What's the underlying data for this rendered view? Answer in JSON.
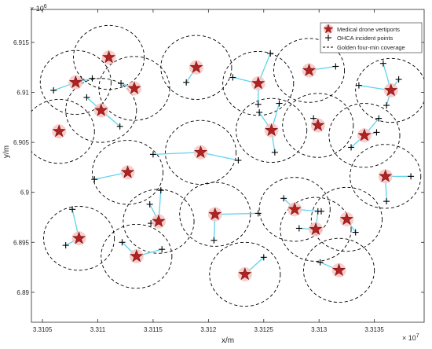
{
  "chart_data": {
    "type": "scatter",
    "xlabel": "x/m",
    "ylabel": "y/m",
    "x_exponent_label": "× 10",
    "x_exponent_power": "7",
    "y_exponent_label": "× 10",
    "y_exponent_power": "6",
    "xlim": [
      33104000,
      33139500
    ],
    "ylim": [
      6887000,
      6918300
    ],
    "xticks": [
      33105000,
      33110000,
      33115000,
      33120000,
      33125000,
      33130000,
      33135000
    ],
    "xtick_labels": [
      "3.3105",
      "3.311",
      "3.3115",
      "3.312",
      "3.3125",
      "3.313",
      "3.3135"
    ],
    "yticks": [
      6890000,
      6895000,
      6900000,
      6905000,
      6910000,
      6915000
    ],
    "ytick_labels": [
      "6.89",
      "6.895",
      "6.9",
      "6.905",
      "6.91",
      "6.915"
    ],
    "coverage_radius": 3200,
    "grid": false,
    "legend_position": "top-right",
    "legend": [
      "Medical drone vertiports",
      "OHCA incident points",
      "Golden four-min coverage"
    ],
    "colors": {
      "star_fill": "#b22222",
      "star_stroke": "#7a1010",
      "star_halo": "#f4c7c3",
      "link": "#5fd3ee",
      "incident": "#000000",
      "circle": "#000000"
    },
    "vertiports": [
      {
        "x": 33111000,
        "y": 6913500,
        "incidents": []
      },
      {
        "x": 33108000,
        "y": 6911000,
        "incidents": [
          [
            33106000,
            6910200
          ],
          [
            33108500,
            6911300
          ],
          [
            33109500,
            6911400
          ]
        ]
      },
      {
        "x": 33113300,
        "y": 6910400,
        "incidents": [
          [
            33112100,
            6910900
          ]
        ]
      },
      {
        "x": 33110300,
        "y": 6908200,
        "incidents": [
          [
            33109000,
            6909500
          ],
          [
            33112000,
            6906600
          ]
        ]
      },
      {
        "x": 33106500,
        "y": 6906100,
        "incidents": []
      },
      {
        "x": 33118900,
        "y": 6912500,
        "incidents": [
          [
            33118000,
            6911000
          ]
        ]
      },
      {
        "x": 33124500,
        "y": 6910900,
        "incidents": [
          [
            33122200,
            6911500
          ],
          [
            33125600,
            6913900
          ],
          [
            33124500,
            6908800
          ]
        ]
      },
      {
        "x": 33129100,
        "y": 6912200,
        "incidents": [
          [
            33131500,
            6912600
          ]
        ]
      },
      {
        "x": 33136500,
        "y": 6910200,
        "incidents": [
          [
            33133600,
            6910700
          ],
          [
            33135800,
            6912900
          ],
          [
            33137200,
            6911300
          ],
          [
            33136100,
            6908700
          ]
        ]
      },
      {
        "x": 33125700,
        "y": 6906200,
        "incidents": [
          [
            33124600,
            6908000
          ],
          [
            33126400,
            6908900
          ],
          [
            33126000,
            6904000
          ]
        ]
      },
      {
        "x": 33129900,
        "y": 6906700,
        "incidents": [
          [
            33129500,
            6907400
          ]
        ]
      },
      {
        "x": 33134100,
        "y": 6905700,
        "incidents": [
          [
            33132900,
            6904500
          ],
          [
            33135200,
            6906000
          ],
          [
            33135400,
            6907400
          ]
        ]
      },
      {
        "x": 33119300,
        "y": 6904000,
        "incidents": [
          [
            33115000,
            6903800
          ],
          [
            33122700,
            6903200
          ]
        ]
      },
      {
        "x": 33112700,
        "y": 6902000,
        "incidents": [
          [
            33109700,
            6901300
          ]
        ]
      },
      {
        "x": 33136000,
        "y": 6901600,
        "incidents": [
          [
            33138300,
            6901600
          ],
          [
            33136100,
            6899100
          ]
        ]
      },
      {
        "x": 33115500,
        "y": 6897100,
        "incidents": [
          [
            33115700,
            6900200
          ],
          [
            33114700,
            6898800
          ],
          [
            33114800,
            6896900
          ]
        ]
      },
      {
        "x": 33120600,
        "y": 6897800,
        "incidents": [
          [
            33124500,
            6897900
          ],
          [
            33120500,
            6895200
          ]
        ]
      },
      {
        "x": 33127800,
        "y": 6898300,
        "incidents": [
          [
            33126800,
            6899400
          ],
          [
            33130200,
            6898100
          ]
        ]
      },
      {
        "x": 33129700,
        "y": 6896300,
        "incidents": [
          [
            33128200,
            6896400
          ],
          [
            33129900,
            6898100
          ]
        ]
      },
      {
        "x": 33132500,
        "y": 6897300,
        "incidents": [
          [
            33133300,
            6896000
          ]
        ]
      },
      {
        "x": 33108300,
        "y": 6895400,
        "incidents": [
          [
            33107700,
            6898300
          ],
          [
            33107100,
            6894700
          ]
        ]
      },
      {
        "x": 33113500,
        "y": 6893600,
        "incidents": [
          [
            33112200,
            6895000
          ],
          [
            33115800,
            6894300
          ]
        ]
      },
      {
        "x": 33123300,
        "y": 6891800,
        "incidents": [
          [
            33125000,
            6893500
          ]
        ]
      },
      {
        "x": 33131800,
        "y": 6892200,
        "incidents": [
          [
            33130100,
            6893000
          ]
        ]
      }
    ]
  }
}
